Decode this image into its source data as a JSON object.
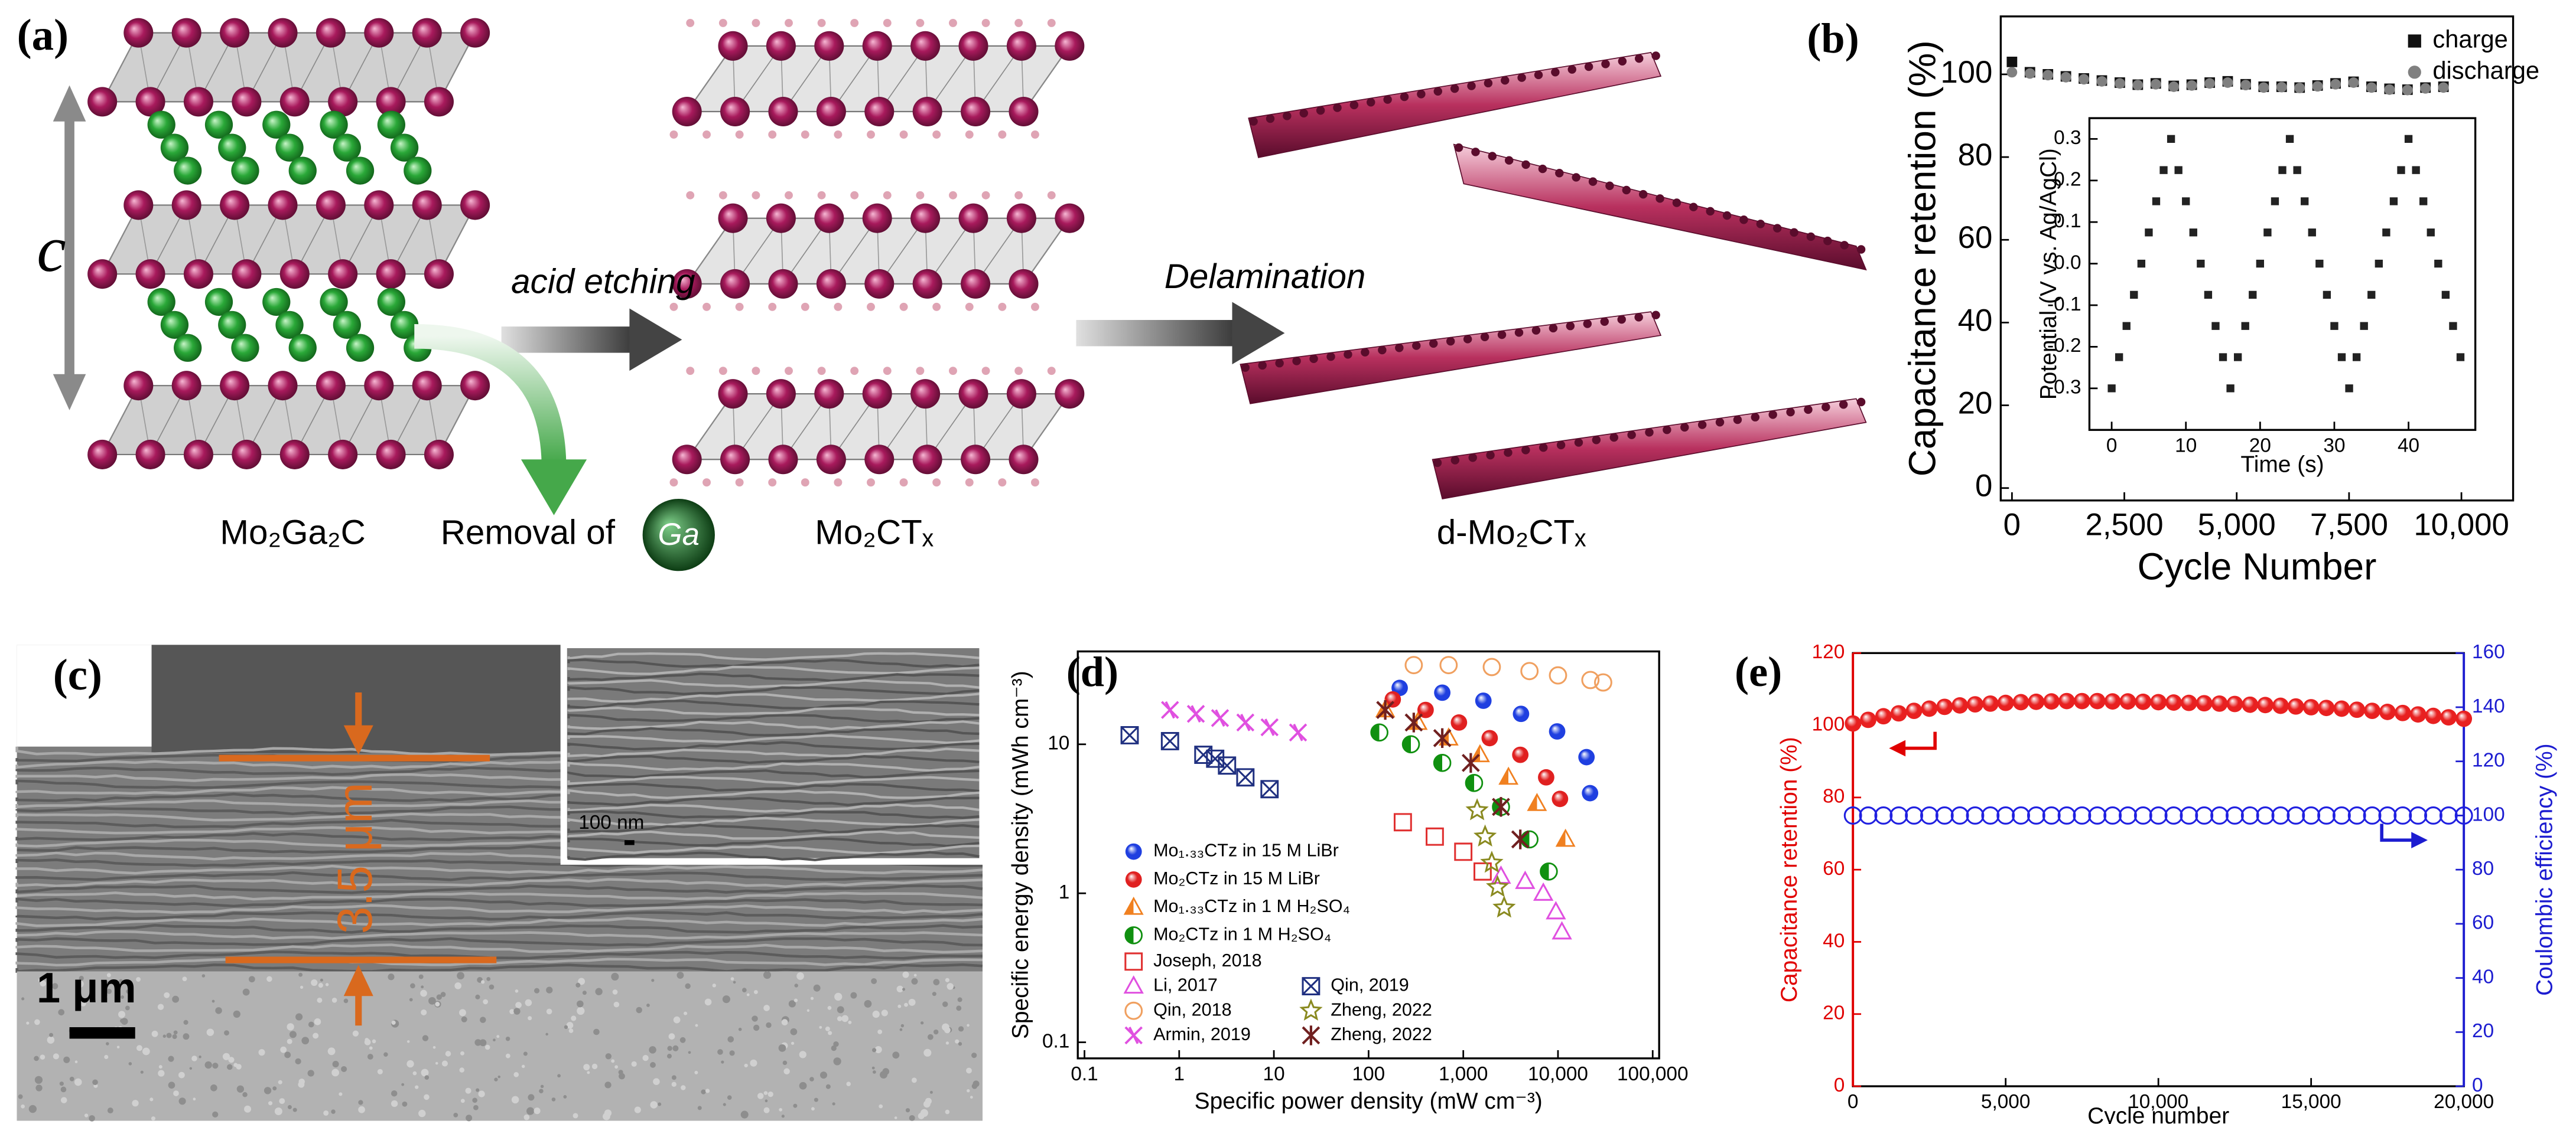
{
  "figure": {
    "a": {
      "label": "(a)",
      "axis_label": "c",
      "step1": "acid etching",
      "step2": "Delamination",
      "phase1": "Mo₂Ga₂C",
      "removal": "Removal of",
      "element": "Ga",
      "phase2": "Mo₂CTₓ",
      "phase3": "d-Mo₂CTₓ"
    },
    "c": {
      "label": "(c)",
      "thickness": "3.5 μm",
      "inset_scale": "100 nm",
      "scale": "1 μm"
    }
  },
  "chart_data": [
    {
      "type": "scatter",
      "panel_label": "(b)",
      "xlabel": "Cycle Number",
      "ylabel": "Capacitance retention (%)",
      "xlim": [
        -250,
        11150
      ],
      "ylim": [
        -3,
        114
      ],
      "xticks": [
        0,
        {
          "value": 2500,
          "label": "2,500"
        },
        {
          "value": 5000,
          "label": "5,000"
        },
        {
          "value": 7500,
          "label": "7,500"
        },
        {
          "value": 10000,
          "label": "10,000"
        }
      ],
      "yticks": [
        0,
        20,
        40,
        60,
        80,
        100
      ],
      "legend": "upper right",
      "x": [
        0,
        400,
        800,
        1200,
        1600,
        2000,
        2400,
        2800,
        3200,
        3600,
        4000,
        4400,
        4800,
        5200,
        5600,
        6000,
        6400,
        6800,
        7200,
        7600,
        8000,
        8400,
        8800,
        9200,
        9600
      ],
      "series": [
        {
          "name": "charge",
          "color": "#111111",
          "marker": "square",
          "values": [
            103,
            100.5,
            100,
            99.5,
            99,
            98.5,
            98,
            97.5,
            97.8,
            97.2,
            97.5,
            98,
            98.3,
            97.6,
            97,
            97,
            96.8,
            97.3,
            97.8,
            98.2,
            97,
            96.5,
            96.3,
            96.8,
            97
          ]
        },
        {
          "name": "discharge",
          "color": "#808080",
          "marker": "circle",
          "values": [
            100.5,
            100.2,
            99.8,
            99.3,
            98.8,
            98.3,
            97.8,
            97.4,
            97.6,
            97,
            97.3,
            97.8,
            98,
            97.4,
            96.8,
            96.9,
            96.7,
            97.1,
            97.6,
            98,
            96.8,
            96.3,
            96.2,
            96.6,
            96.8
          ]
        }
      ]
    },
    {
      "type": "scatter",
      "xlabel": "Time (s)",
      "ylabel": "Potential (V vs. Ag/AgCl)",
      "xlim": [
        -3,
        49
      ],
      "ylim": [
        -0.4,
        0.35
      ],
      "xticks": [
        0,
        10,
        20,
        30,
        40
      ],
      "yticks": [
        -0.3,
        -0.2,
        -0.1,
        {
          "value": 0,
          "label": "0.0"
        },
        0.1,
        0.2,
        0.3
      ],
      "x": [
        0,
        1,
        2,
        3,
        4,
        5,
        6,
        7,
        8,
        9,
        10,
        11,
        12,
        13,
        14,
        15,
        16,
        17,
        18,
        19,
        20,
        21,
        22,
        23,
        24,
        25,
        26,
        27,
        28,
        29,
        30,
        31,
        32,
        33,
        34,
        35,
        36,
        37,
        38,
        39,
        40,
        41,
        42,
        43,
        44,
        45,
        46,
        47
      ],
      "series": [
        {
          "color": "#222222",
          "marker": "square",
          "values": [
            -0.3,
            -0.225,
            -0.15,
            -0.075,
            0,
            0.075,
            0.15,
            0.225,
            0.3,
            0.225,
            0.15,
            0.075,
            0,
            -0.075,
            -0.15,
            -0.225,
            -0.3,
            -0.225,
            -0.15,
            -0.075,
            0,
            0.075,
            0.15,
            0.225,
            0.3,
            0.225,
            0.15,
            0.075,
            0,
            -0.075,
            -0.15,
            -0.225,
            -0.3,
            -0.225,
            -0.15,
            -0.075,
            0,
            0.075,
            0.15,
            0.225,
            0.3,
            0.225,
            0.15,
            0.075,
            0,
            -0.075,
            -0.15,
            -0.225
          ]
        }
      ]
    },
    {
      "type": "scatter",
      "panel_label": "(d)",
      "log_x": true,
      "log_y": true,
      "xlabel": "Specific power density (mW cm⁻³)",
      "ylabel": "Specific energy density (mWh cm⁻³)",
      "xlim": [
        0.085,
        117000
      ],
      "ylim": [
        0.078,
        42
      ],
      "xticks": [
        0.1,
        1,
        10,
        100,
        {
          "value": 1000,
          "label": "1,000"
        },
        {
          "value": 10000,
          "label": "10,000"
        },
        {
          "value": 100000,
          "label": "100,000"
        }
      ],
      "yticks": [
        0.1,
        1,
        10
      ],
      "legend": "lower left",
      "series": [
        {
          "name": "Mo₁.₃₃CTz in 15 M LiBr",
          "color": "#1f3fe0",
          "marker": "sphere",
          "x": [
            213,
            600,
            1630,
            4070,
            9800,
            20000,
            21800
          ],
          "values": [
            23.9,
            22.2,
            19.6,
            16,
            12.2,
            8.2,
            4.7
          ]
        },
        {
          "name": "Mo₂CTz in 15 M LiBr",
          "color": "#e02020",
          "marker": "sphere",
          "x": [
            180,
            400,
            900,
            1900,
            4000,
            7500,
            10500
          ],
          "values": [
            20,
            17,
            14,
            11,
            8.5,
            6,
            4.3
          ]
        },
        {
          "name": "Mo₁.₃₃CTz in 1 M H₂SO₄",
          "color": "#f08020",
          "marker": "half-triangle",
          "x": [
            150,
            330,
            700,
            1500,
            3000,
            6000,
            12000
          ],
          "values": [
            17,
            14,
            11,
            8.5,
            6,
            4,
            2.3
          ]
        },
        {
          "name": "Mo₂CTz in 1 M H₂SO₄",
          "color": "#109010",
          "marker": "half",
          "x": [
            130,
            280,
            600,
            1300,
            2500,
            5000,
            8000
          ],
          "values": [
            12,
            10,
            7.5,
            5.5,
            3.8,
            2.3,
            1.4
          ]
        },
        {
          "name": "Joseph, 2018",
          "color": "#e03030",
          "marker": "open-square",
          "x": [
            230,
            500,
            1000,
            1600
          ],
          "values": [
            3.0,
            2.4,
            1.9,
            1.4
          ]
        },
        {
          "name": "Li, 2017",
          "color": "#e050e0",
          "marker": "open-triangle",
          "x": [
            2500,
            4500,
            7000,
            9500,
            11000
          ],
          "values": [
            1.3,
            1.2,
            1.0,
            0.75,
            0.55
          ]
        },
        {
          "name": "Qin, 2018",
          "color": "#f0a060",
          "marker": "open-circle",
          "x": [
            300,
            700,
            2000,
            5000,
            10000,
            22000,
            30000
          ],
          "values": [
            34,
            34,
            33,
            31,
            29,
            27,
            26
          ]
        },
        {
          "name": "Armin, 2019",
          "color": "#e050e0",
          "marker": "x-cross",
          "x": [
            0.8,
            1.5,
            2.7,
            5,
            9,
            18
          ],
          "values": [
            17,
            16,
            15,
            14,
            13,
            12
          ]
        },
        {
          "name": "Qin, 2019",
          "color": "#203080",
          "marker": "crossed-square",
          "x": [
            0.3,
            0.8,
            1.8,
            2.4,
            3.2,
            5,
            9
          ],
          "values": [
            11.5,
            10.5,
            8.5,
            8,
            7.2,
            6,
            5
          ]
        },
        {
          "name": "Zheng, 2022",
          "color": "#8a8a20",
          "marker": "star",
          "x": [
            1400,
            1700,
            2000,
            2300,
            2700
          ],
          "values": [
            3.6,
            2.4,
            1.6,
            1.1,
            0.8
          ]
        },
        {
          "name": "Zheng, 2022",
          "color": "#702020",
          "marker": "asterisk",
          "x": [
            150,
            300,
            600,
            1200,
            2500,
            4000
          ],
          "values": [
            17,
            14,
            11,
            7.5,
            3.8,
            2.3
          ]
        }
      ]
    },
    {
      "type": "scatter",
      "panel_label": "(e)",
      "xlabel": "Cycle number",
      "ylabel": "Capacitance retention (%)",
      "y2label": "Coulombic efficiency (%)",
      "y_color": "#e00000",
      "y2_color": "#1c1cd0",
      "xlim": [
        0,
        20000
      ],
      "ylim": [
        0,
        120
      ],
      "y2lim": [
        0,
        160
      ],
      "xticks": [
        0,
        {
          "value": 5000,
          "label": "5,000"
        },
        {
          "value": 10000,
          "label": "10,000"
        },
        {
          "value": 15000,
          "label": "15,000"
        },
        {
          "value": 20000,
          "label": "20,000"
        }
      ],
      "yticks": [
        0,
        20,
        40,
        60,
        80,
        100,
        120
      ],
      "y2ticks": [
        0,
        20,
        40,
        60,
        80,
        100,
        120,
        140,
        160
      ],
      "x": [
        0,
        500,
        1000,
        1500,
        2000,
        2500,
        3000,
        3500,
        4000,
        4500,
        5000,
        5500,
        6000,
        6500,
        7000,
        7500,
        8000,
        8500,
        9000,
        9500,
        10000,
        10500,
        11000,
        11500,
        12000,
        12500,
        13000,
        13500,
        14000,
        14500,
        15000,
        15500,
        16000,
        16500,
        17000,
        17500,
        18000,
        18500,
        19000,
        19500,
        20000
      ],
      "series": [
        {
          "color": "#e82020",
          "marker": "sphere",
          "values": [
            100.5,
            101.5,
            102.5,
            103.3,
            104,
            104.6,
            105.1,
            105.5,
            105.8,
            106,
            106.2,
            106.4,
            106.5,
            106.6,
            106.7,
            106.7,
            106.7,
            106.6,
            106.6,
            106.5,
            106.4,
            106.3,
            106.2,
            106.1,
            106,
            105.9,
            105.7,
            105.6,
            105.4,
            105.2,
            105,
            104.8,
            104.6,
            104.3,
            104,
            103.7,
            103.4,
            103,
            102.6,
            102.2,
            101.8
          ]
        },
        {
          "color": "#2020e0",
          "marker": "open-circle",
          "axis": "y2",
          "values": [
            100,
            100,
            100,
            100,
            100,
            100,
            100,
            100,
            100,
            100,
            100,
            100,
            100,
            100,
            100,
            100,
            100,
            100,
            100,
            100,
            100,
            100,
            100,
            100,
            100,
            100,
            100,
            100,
            100,
            100,
            100,
            100,
            100,
            100,
            100,
            100,
            100,
            100,
            100,
            100,
            100
          ]
        }
      ]
    }
  ]
}
